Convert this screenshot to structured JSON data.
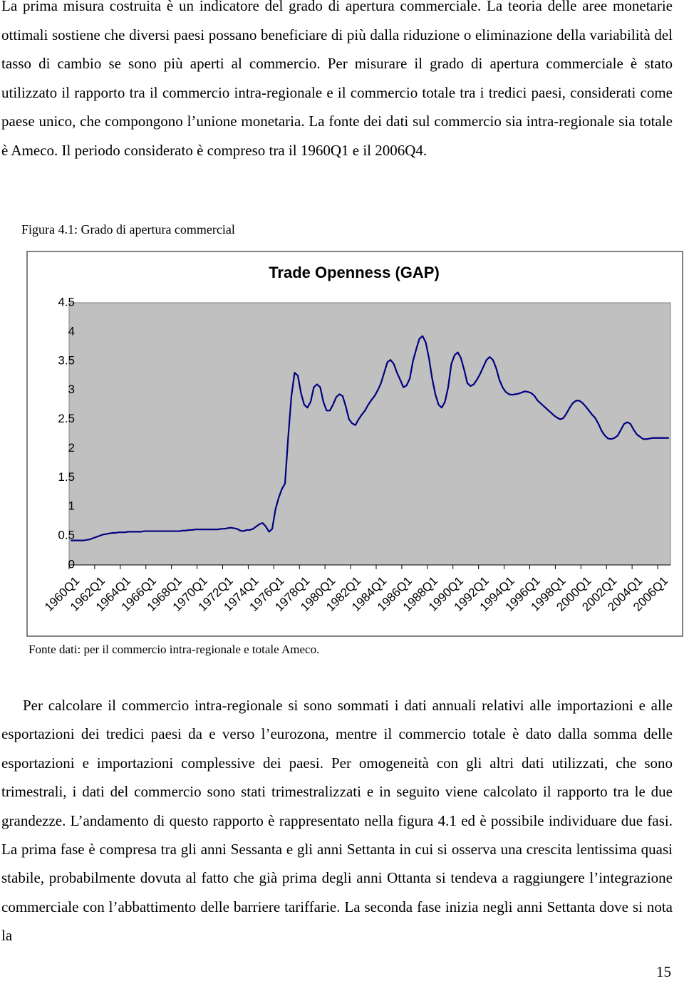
{
  "paragraphs": [
    "La prima misura costruita è un indicatore del grado di apertura commerciale. La teoria delle aree monetarie ottimali sostiene che diversi paesi possano beneficiare di più dalla riduzione o eliminazione della variabilità del tasso di cambio se sono più aperti al commercio. Per misurare il grado di apertura commerciale è stato utilizzato il rapporto tra il commercio intra-regionale e il commercio totale tra i tredici paesi, considerati come paese unico, che compongono l’unione monetaria. La fonte dei dati sul commercio sia intra-regionale sia totale è Ameco. Il periodo considerato è compreso tra il 1960Q1 e il 2006Q4.",
    "Per calcolare il commercio intra-regionale si sono sommati i dati annuali relativi alle importazioni e alle esportazioni dei tredici paesi da e verso l’eurozona, mentre il commercio totale è dato dalla somma delle esportazioni e importazioni complessive dei paesi. Per omogeneità con gli altri dati utilizzati, che sono trimestrali, i dati del commercio sono stati trimestralizzati e in seguito viene calcolato il rapporto tra le due grandezze. L’andamento di questo rapporto è rappresentato nella figura 4.1 ed è possibile individuare due fasi. La prima fase è compresa tra gli anni Sessanta e gli anni Settanta in cui si osserva una crescita lentissima quasi stabile, probabilmente dovuta al fatto che già prima degli anni Ottanta si tendeva a raggiungere l’integrazione commerciale con l’abbattimento delle barriere tariffarie. La seconda fase inizia negli anni Settanta dove si nota la"
  ],
  "figure_caption": "Figura 4.1: Grado di apertura commercial",
  "figure_source": "Fonte dati: per il commercio intra-regionale e totale Ameco.",
  "page_number": "15",
  "chart_data": {
    "type": "line",
    "title": "Trade Openness (GAP)",
    "color": "#000080",
    "plot_background": "#c0c0c0",
    "categories": [
      "1960Q1",
      null,
      null,
      null,
      null,
      null,
      null,
      null,
      "1962Q1",
      null,
      null,
      null,
      null,
      null,
      null,
      null,
      "1964Q1",
      null,
      null,
      null,
      null,
      null,
      null,
      null,
      "1966Q1",
      null,
      null,
      null,
      null,
      null,
      null,
      null,
      "1968Q1",
      null,
      null,
      null,
      null,
      null,
      null,
      null,
      "1970Q1",
      null,
      null,
      null,
      null,
      null,
      null,
      null,
      "1972Q1",
      null,
      null,
      null,
      null,
      null,
      null,
      null,
      "1974Q1",
      null,
      null,
      null,
      null,
      null,
      null,
      null,
      "1976Q1",
      null,
      null,
      null,
      null,
      null,
      null,
      null,
      "1978Q1",
      null,
      null,
      null,
      null,
      null,
      null,
      null,
      "1980Q1",
      null,
      null,
      null,
      null,
      null,
      null,
      null,
      "1982Q1",
      null,
      null,
      null,
      null,
      null,
      null,
      null,
      "1984Q1",
      null,
      null,
      null,
      null,
      null,
      null,
      null,
      "1986Q1",
      null,
      null,
      null,
      null,
      null,
      null,
      null,
      "1988Q1",
      null,
      null,
      null,
      null,
      null,
      null,
      null,
      "1990Q1",
      null,
      null,
      null,
      null,
      null,
      null,
      null,
      "1992Q1",
      null,
      null,
      null,
      null,
      null,
      null,
      null,
      "1994Q1",
      null,
      null,
      null,
      null,
      null,
      null,
      null,
      "1996Q1",
      null,
      null,
      null,
      null,
      null,
      null,
      null,
      "1998Q1",
      null,
      null,
      null,
      null,
      null,
      null,
      null,
      "2000Q1",
      null,
      null,
      null,
      null,
      null,
      null,
      null,
      "2002Q1",
      null,
      null,
      null,
      null,
      null,
      null,
      null,
      "2004Q1",
      null,
      null,
      null,
      null,
      null,
      null,
      null,
      "2006Q1",
      null,
      null,
      null
    ],
    "values": [
      0.42,
      0.42,
      0.42,
      0.42,
      0.42,
      0.43,
      0.44,
      0.46,
      0.48,
      0.5,
      0.52,
      0.53,
      0.54,
      0.55,
      0.55,
      0.56,
      0.56,
      0.56,
      0.57,
      0.57,
      0.57,
      0.57,
      0.57,
      0.58,
      0.58,
      0.58,
      0.58,
      0.58,
      0.58,
      0.58,
      0.58,
      0.58,
      0.58,
      0.58,
      0.58,
      0.59,
      0.59,
      0.6,
      0.6,
      0.61,
      0.61,
      0.61,
      0.61,
      0.61,
      0.61,
      0.61,
      0.61,
      0.62,
      0.62,
      0.63,
      0.64,
      0.63,
      0.62,
      0.59,
      0.58,
      0.6,
      0.6,
      0.62,
      0.66,
      0.7,
      0.72,
      0.66,
      0.57,
      0.62,
      0.95,
      1.15,
      1.3,
      1.4,
      2.2,
      2.9,
      3.3,
      3.25,
      2.95,
      2.75,
      2.7,
      2.8,
      3.05,
      3.1,
      3.05,
      2.8,
      2.65,
      2.65,
      2.75,
      2.88,
      2.93,
      2.9,
      2.72,
      2.5,
      2.43,
      2.4,
      2.5,
      2.58,
      2.65,
      2.75,
      2.83,
      2.9,
      3.0,
      3.12,
      3.3,
      3.48,
      3.52,
      3.45,
      3.3,
      3.18,
      3.05,
      3.08,
      3.2,
      3.5,
      3.7,
      3.88,
      3.93,
      3.82,
      3.55,
      3.2,
      2.93,
      2.75,
      2.7,
      2.8,
      3.05,
      3.45,
      3.6,
      3.65,
      3.55,
      3.35,
      3.12,
      3.07,
      3.1,
      3.18,
      3.28,
      3.4,
      3.52,
      3.57,
      3.52,
      3.38,
      3.18,
      3.05,
      2.97,
      2.93,
      2.92,
      2.93,
      2.94,
      2.96,
      2.98,
      2.97,
      2.95,
      2.9,
      2.82,
      2.77,
      2.72,
      2.67,
      2.62,
      2.57,
      2.53,
      2.5,
      2.52,
      2.6,
      2.7,
      2.78,
      2.82,
      2.82,
      2.78,
      2.72,
      2.65,
      2.58,
      2.52,
      2.42,
      2.3,
      2.22,
      2.17,
      2.16,
      2.18,
      2.22,
      2.32,
      2.42,
      2.45,
      2.42,
      2.32,
      2.24,
      2.2,
      2.16,
      2.16,
      2.17,
      2.18,
      2.18,
      2.18,
      2.18,
      2.18,
      2.18
    ],
    "ylim": [
      0,
      4.5
    ],
    "yticks": [
      0,
      0.5,
      1,
      1.5,
      2,
      2.5,
      3,
      3.5,
      4,
      4.5
    ],
    "grid": false
  }
}
